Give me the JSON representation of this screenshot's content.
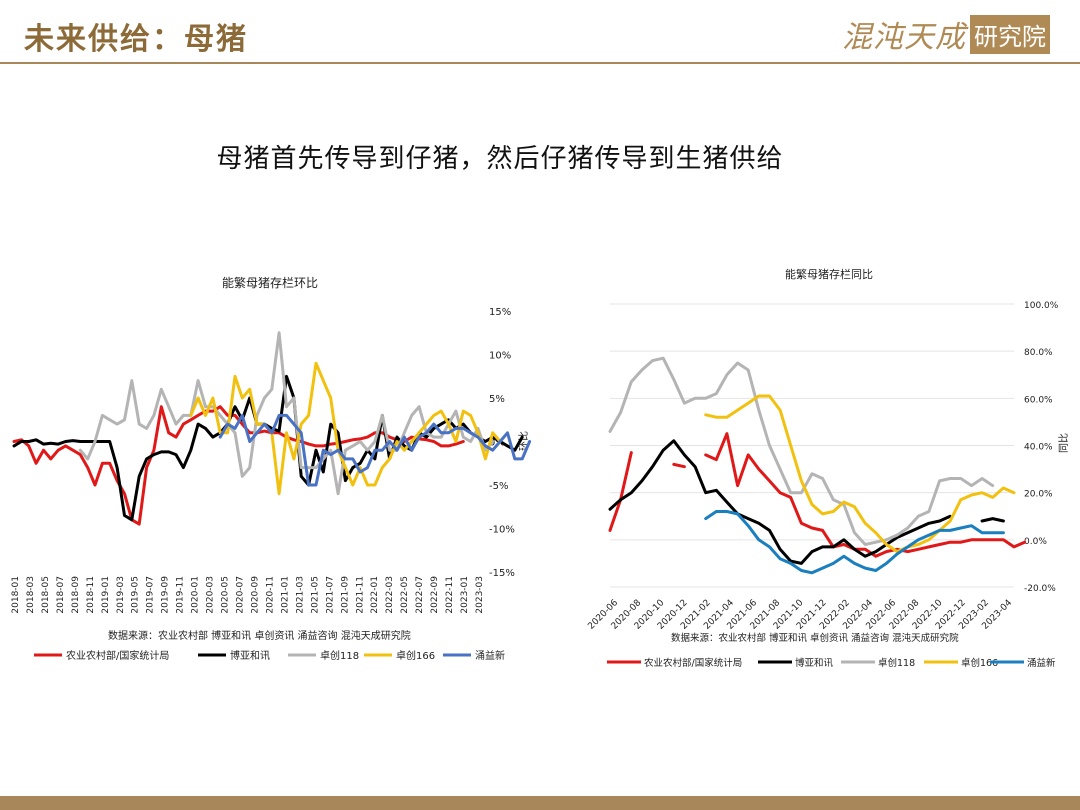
{
  "header": {
    "title": "未来供给：母猪",
    "logo_script": "混沌天成",
    "logo_box": "研究院"
  },
  "subtitle": "母猪首先传导到仔猪，然后仔猪传导到生猪供给",
  "colors": {
    "accent": "#a8875a",
    "s1": "#e01818",
    "s2": "#000000",
    "s3": "#b4b4b4",
    "s4": "#f2c10f",
    "s5": "#4a72c4",
    "s5b": "#1a7fbf"
  },
  "chart_data": [
    {
      "type": "line",
      "title": "能繁母猪存栏环比",
      "ylabel": "环比",
      "ylim": [
        -15,
        15
      ],
      "yticks": [
        "15%",
        "10%",
        "5%",
        "0%",
        "-5%",
        "-10%",
        "-15%"
      ],
      "x_labels": [
        "2018-01",
        "2018-03",
        "2018-05",
        "2018-07",
        "2018-09",
        "2018-11",
        "2019-01",
        "2019-03",
        "2019-05",
        "2019-07",
        "2019-09",
        "2019-11",
        "2020-01",
        "2020-03",
        "2020-05",
        "2020-07",
        "2020-09",
        "2020-11",
        "2021-01",
        "2021-03",
        "2021-05",
        "2021-07",
        "2021-09",
        "2021-11",
        "2022-01",
        "2022-03",
        "2022-05",
        "2022-07",
        "2022-09",
        "2022-11",
        "2023-01",
        "2023-03"
      ],
      "source": "数据来源：农业农村部 博亚和讯 卓创资讯 涌益咨询 混沌天成研究院",
      "series": [
        {
          "name": "农业农村部/国家统计局",
          "color": "#e01818",
          "start": 0,
          "values": [
            0,
            0.2,
            -0.5,
            -2.5,
            -1,
            -2,
            -1,
            -0.5,
            -1,
            -1.5,
            -3,
            -5,
            -2.5,
            -2.5,
            -4.5,
            -6,
            -9,
            -9.5,
            -3,
            -1,
            4,
            1,
            0.5,
            2,
            2.5,
            3,
            3.5,
            3.5,
            4,
            3,
            3,
            2,
            1,
            1,
            1.2,
            1,
            1,
            0.5,
            0.2,
            0,
            -0.3,
            -0.5,
            -0.5,
            -0.3,
            -0.2,
            0,
            0.2,
            0.3,
            0.5,
            1,
            1,
            0.5,
            0.2,
            0,
            0.5,
            0.3,
            0.2,
            0,
            -0.5,
            -0.5,
            -0.3,
            0
          ]
        },
        {
          "name": "博亚和讯",
          "color": "#000000",
          "start": 0,
          "values": [
            -0.5,
            0,
            0,
            0.2,
            -0.3,
            -0.2,
            -0.3,
            0,
            0.1,
            0,
            0,
            0,
            0,
            0,
            -3,
            -8.5,
            -9,
            -4,
            -2,
            -1.5,
            -1.2,
            -1.2,
            -1.5,
            -3,
            -1,
            2,
            1.5,
            0.5,
            1,
            2,
            4,
            2.5,
            5,
            2,
            2,
            1.5,
            1.2,
            7.5,
            5,
            -4,
            -5,
            -1,
            -3.5,
            2,
            1,
            -4.5,
            -3,
            -2.5,
            -1,
            -2,
            3,
            -2,
            0.5,
            -0.5,
            -1,
            1,
            0.5,
            1.5,
            2,
            2.5,
            1.5,
            2,
            1,
            0.5,
            0,
            0.5,
            0,
            -0.5,
            -1,
            0.5
          ]
        },
        {
          "name": "卓创118",
          "color": "#b4b4b4",
          "start": 9,
          "values": [
            -1,
            -2,
            0,
            3,
            2.5,
            2,
            2.5,
            7,
            2,
            1.5,
            3,
            6,
            4,
            2,
            3,
            3,
            7,
            4,
            4,
            3,
            2,
            1,
            -4,
            -3,
            3,
            5,
            6,
            12.5,
            4,
            5,
            -3,
            -3,
            -3,
            -2,
            -1,
            -6,
            -1,
            -0.5,
            0,
            -1,
            0,
            3,
            -1,
            -1,
            1,
            3,
            4,
            1,
            0.5,
            0.5,
            2,
            3.5,
            0.5,
            0,
            1.5,
            -1,
            0
          ]
        },
        {
          "name": "卓创166",
          "color": "#f2c10f",
          "start": 24,
          "values": [
            3,
            5,
            3,
            5,
            1,
            1,
            7.5,
            5,
            6,
            2,
            2,
            1,
            -6,
            1,
            -2,
            2,
            3,
            9,
            7,
            5,
            -1,
            -3,
            -5,
            -3,
            -5,
            -5,
            -3,
            -2,
            0,
            -1,
            0,
            1,
            2,
            3,
            3.5,
            2,
            0,
            3.5,
            3,
            1,
            -2,
            1,
            0
          ]
        },
        {
          "name": "涌益新",
          "color": "#4a72c4",
          "start": 28,
          "values": [
            0.5,
            2,
            1.5,
            3,
            0,
            1,
            2,
            1,
            3,
            3,
            2,
            1,
            -5,
            -5,
            -1,
            -1.5,
            -1,
            -2,
            -2,
            -3.5,
            -3,
            -1,
            -1,
            0,
            -1,
            0.5,
            -1,
            0.5,
            1,
            2,
            1,
            1,
            1.5,
            1.5,
            1,
            0.5,
            -0.5,
            -1,
            0,
            1,
            -2,
            -2,
            0
          ]
        }
      ]
    },
    {
      "type": "line",
      "title": "能繁母猪存栏同比",
      "ylabel": "同比",
      "ylim": [
        -20,
        100
      ],
      "yticks": [
        "100.0%",
        "80.0%",
        "60.0%",
        "40.0%",
        "20.0%",
        "0.0%",
        "-20.0%"
      ],
      "x_labels": [
        "2020-06",
        "2020-08",
        "2020-10",
        "2020-12",
        "2021-02",
        "2021-04",
        "2021-06",
        "2021-08",
        "2021-10",
        "2021-12",
        "2022-02",
        "2022-04",
        "2022-06",
        "2022-08",
        "2022-10",
        "2022-12",
        "2023-02",
        "2023-04"
      ],
      "source": "数据来源：农业农村部 博亚和讯 卓创资讯 涌益咨询 混沌天成研究院",
      "series": [
        {
          "name": "农业农村部/国家统计局",
          "color": "#e01818",
          "segments": [
            {
              "start": 0,
              "values": [
                4,
                17,
                37
              ]
            },
            {
              "start": 6,
              "values": [
                32,
                31
              ]
            },
            {
              "start": 9,
              "values": [
                36,
                34,
                45,
                23,
                36,
                30,
                25,
                20,
                18,
                7,
                5,
                4,
                -3,
                -2,
                -4,
                -4,
                -7,
                -5,
                -4,
                -5,
                -4,
                -3,
                -2,
                -1,
                -1,
                0,
                0,
                0,
                0,
                -3,
                -1
              ]
            }
          ]
        },
        {
          "name": "博亚和讯",
          "color": "#000000",
          "segments": [
            {
              "start": 0,
              "values": [
                13,
                17,
                20,
                25,
                31,
                38,
                42,
                36,
                31,
                20,
                21,
                16,
                11,
                9,
                7,
                4,
                -4,
                -9,
                -10,
                -5,
                -3,
                -3,
                0,
                -4,
                -7,
                -5,
                -2,
                1,
                3,
                5,
                7,
                8,
                10
              ]
            },
            {
              "start": 35,
              "values": [
                8,
                9,
                8
              ]
            }
          ]
        },
        {
          "name": "卓创118",
          "color": "#b4b4b4",
          "segments": [
            {
              "start": 0,
              "values": [
                46,
                54,
                67,
                72,
                76,
                77,
                68,
                58,
                60,
                60,
                62,
                70,
                75,
                72,
                55,
                40,
                30,
                20,
                20,
                28,
                26,
                17,
                15,
                3,
                -2,
                -1,
                0,
                2,
                5,
                10,
                12,
                25,
                26,
                26,
                23,
                26,
                23
              ]
            }
          ]
        },
        {
          "name": "卓创166",
          "color": "#f2c10f",
          "segments": [
            {
              "start": 9,
              "values": [
                53,
                52,
                52,
                55,
                58,
                61,
                61,
                55,
                40,
                25,
                15,
                11,
                12,
                16,
                14,
                7,
                3,
                -2,
                -5,
                -3,
                -2,
                0,
                4,
                8,
                17,
                19,
                20,
                18,
                22,
                20
              ]
            }
          ]
        },
        {
          "name": "涌益新",
          "color": "#1a7fbf",
          "segments": [
            {
              "start": 9,
              "values": [
                9,
                12,
                12,
                11,
                6,
                0,
                -3,
                -8,
                -10,
                -13,
                -14,
                -12,
                -10,
                -7,
                -10,
                -12,
                -13,
                -10,
                -6,
                -3,
                0,
                2,
                4,
                4,
                5,
                6,
                3,
                3,
                3
              ]
            }
          ]
        }
      ]
    }
  ]
}
